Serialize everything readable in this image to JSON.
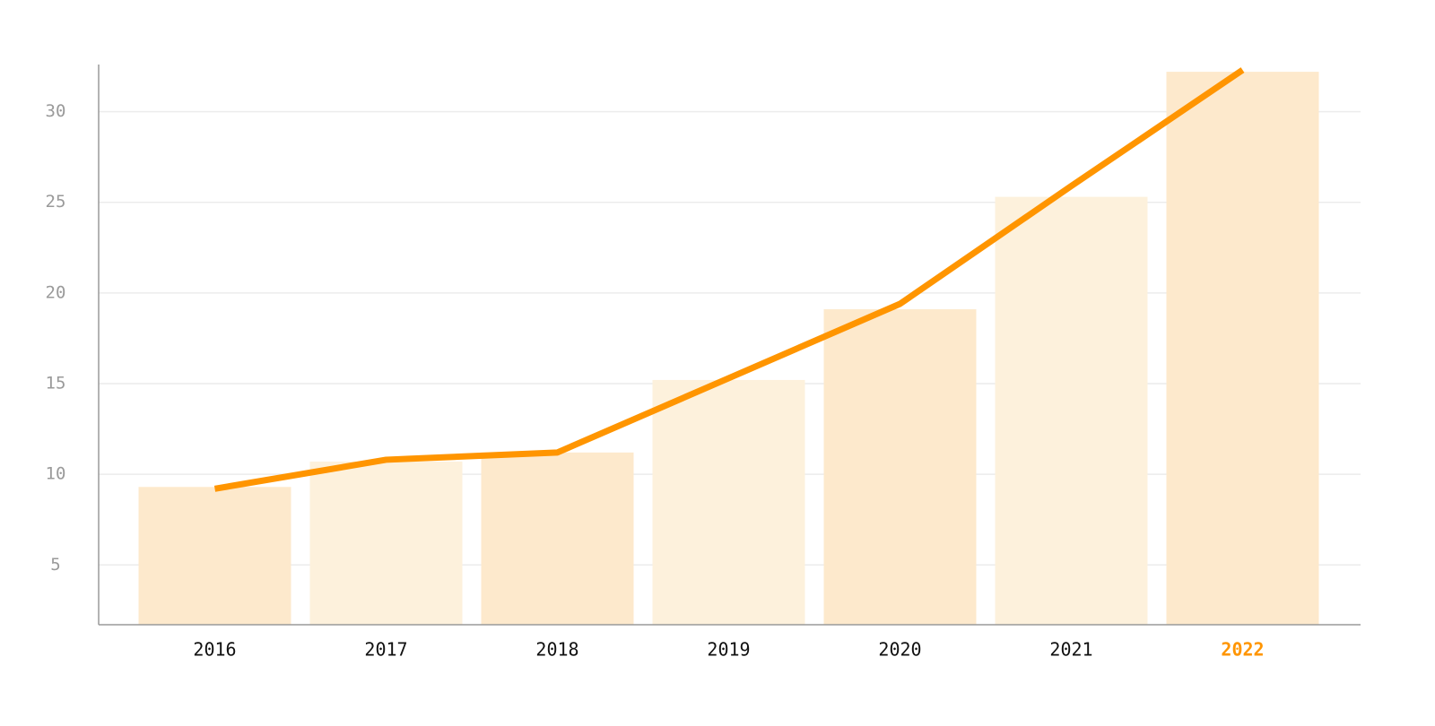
{
  "chart_data": {
    "type": "bar",
    "categories": [
      "2016",
      "2017",
      "2018",
      "2019",
      "2020",
      "2021",
      "2022"
    ],
    "series": [
      {
        "kind": "bar",
        "colors": [
          "#fde9cc",
          "#fdf1dc",
          "#fde9cc",
          "#fdf1dc",
          "#fde9cc",
          "#fdf1dc",
          "#fde9cc"
        ],
        "values": [
          9.3,
          10.7,
          11.2,
          15.2,
          19.1,
          25.3,
          32.2
        ]
      },
      {
        "kind": "line",
        "color": "#ff9500",
        "values": [
          9.2,
          10.8,
          11.2,
          15.3,
          19.4,
          25.9,
          32.3
        ]
      }
    ],
    "label_colors": [
      "#111111",
      "#111111",
      "#111111",
      "#111111",
      "#111111",
      "#111111",
      "#ff9500"
    ],
    "ylim": [
      1.7,
      32.6
    ],
    "yticks": [
      5,
      10,
      15,
      20,
      25,
      30
    ],
    "grid": true
  }
}
